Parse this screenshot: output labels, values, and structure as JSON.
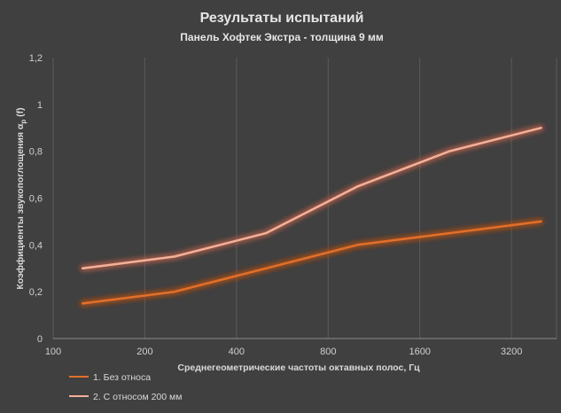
{
  "chart_data": {
    "type": "line",
    "title": "Результаты испытаний",
    "subtitle": "Панель Хофтек Экстра - толщина 9 мм",
    "xlabel": "Среднегеометрические частоты октавных полос, Гц",
    "ylabel": "Коэффициенты звукопоглощения α",
    "ylabel_sub": "p",
    "ylabel_suffix": " (f)",
    "x_scale": "log",
    "xlim": [
      100,
      4500
    ],
    "x_ticks": [
      100,
      200,
      400,
      800,
      1600,
      3200
    ],
    "x_tick_labels": [
      "100",
      "200",
      "400",
      "800",
      "1600",
      "3200"
    ],
    "ylim": [
      0,
      1.2
    ],
    "y_ticks": [
      0,
      0.2,
      0.4,
      0.6,
      0.8,
      1.0,
      1.2
    ],
    "y_tick_labels": [
      "0",
      "0,2",
      "0,4",
      "0,6",
      "0,8",
      "1",
      "1,2"
    ],
    "grid": "vertical",
    "legend_position": "bottom-left",
    "x": [
      125,
      250,
      500,
      1000,
      2000,
      4000
    ],
    "series": [
      {
        "name": "1. Без относа",
        "values": [
          0.15,
          0.2,
          0.3,
          0.4,
          0.45,
          0.5
        ],
        "color": "#e0702a",
        "glow": "#b8501a"
      },
      {
        "name": "2. С относом 200 мм",
        "values": [
          0.3,
          0.35,
          0.45,
          0.65,
          0.8,
          0.9
        ],
        "color": "#f2b199",
        "glow": "#c0604a"
      }
    ]
  }
}
